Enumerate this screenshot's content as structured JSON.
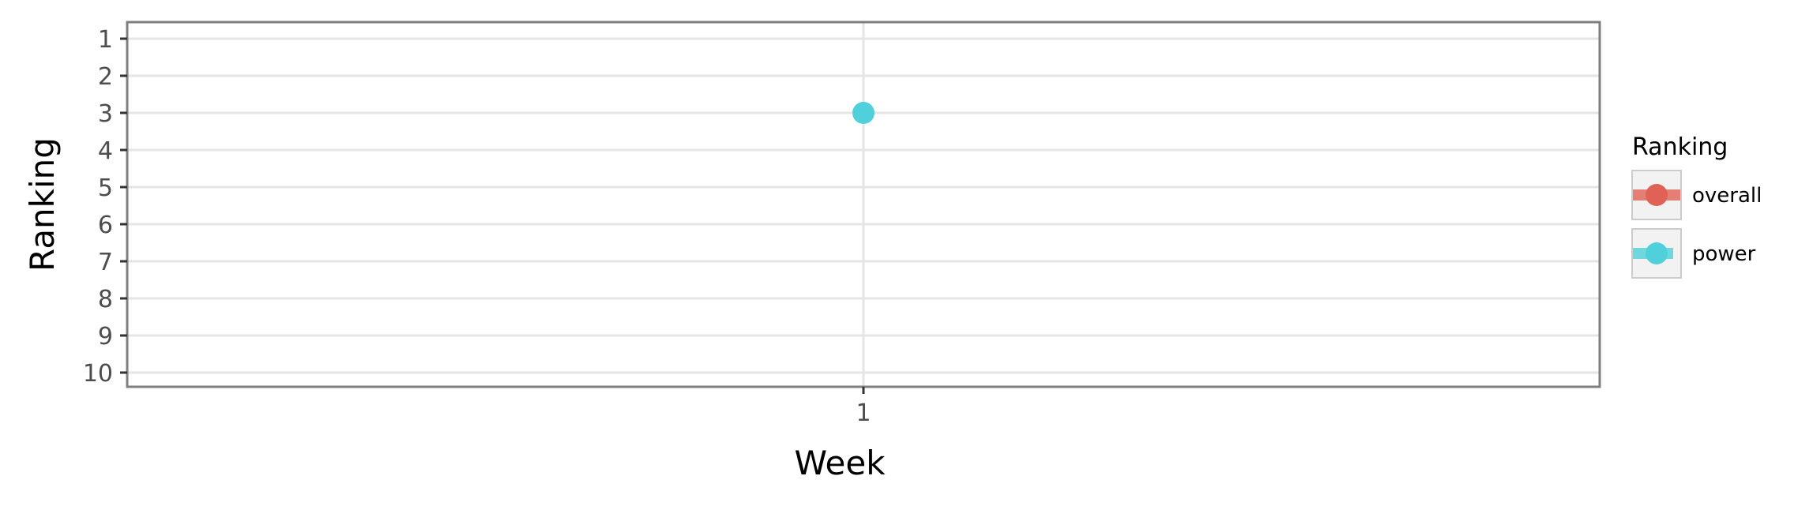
{
  "chart_data": {
    "type": "line",
    "title": "",
    "xlabel": "Week",
    "ylabel": "Ranking",
    "x_ticks": [
      "1"
    ],
    "y_ticks": [
      1,
      2,
      3,
      4,
      5,
      6,
      7,
      8,
      9,
      10
    ],
    "y_reversed": true,
    "ylim": [
      1,
      10
    ],
    "grid": true,
    "legend": {
      "title": "Ranking",
      "placement": "right",
      "entries": [
        {
          "name": "overall",
          "color": "#e06156"
        },
        {
          "name": "power",
          "color": "#4fd0da"
        }
      ]
    },
    "series": [
      {
        "name": "overall",
        "color": "#e06156",
        "points": []
      },
      {
        "name": "power",
        "color": "#4fd0da",
        "points": [
          {
            "x": "1",
            "y": 3
          }
        ]
      }
    ]
  }
}
